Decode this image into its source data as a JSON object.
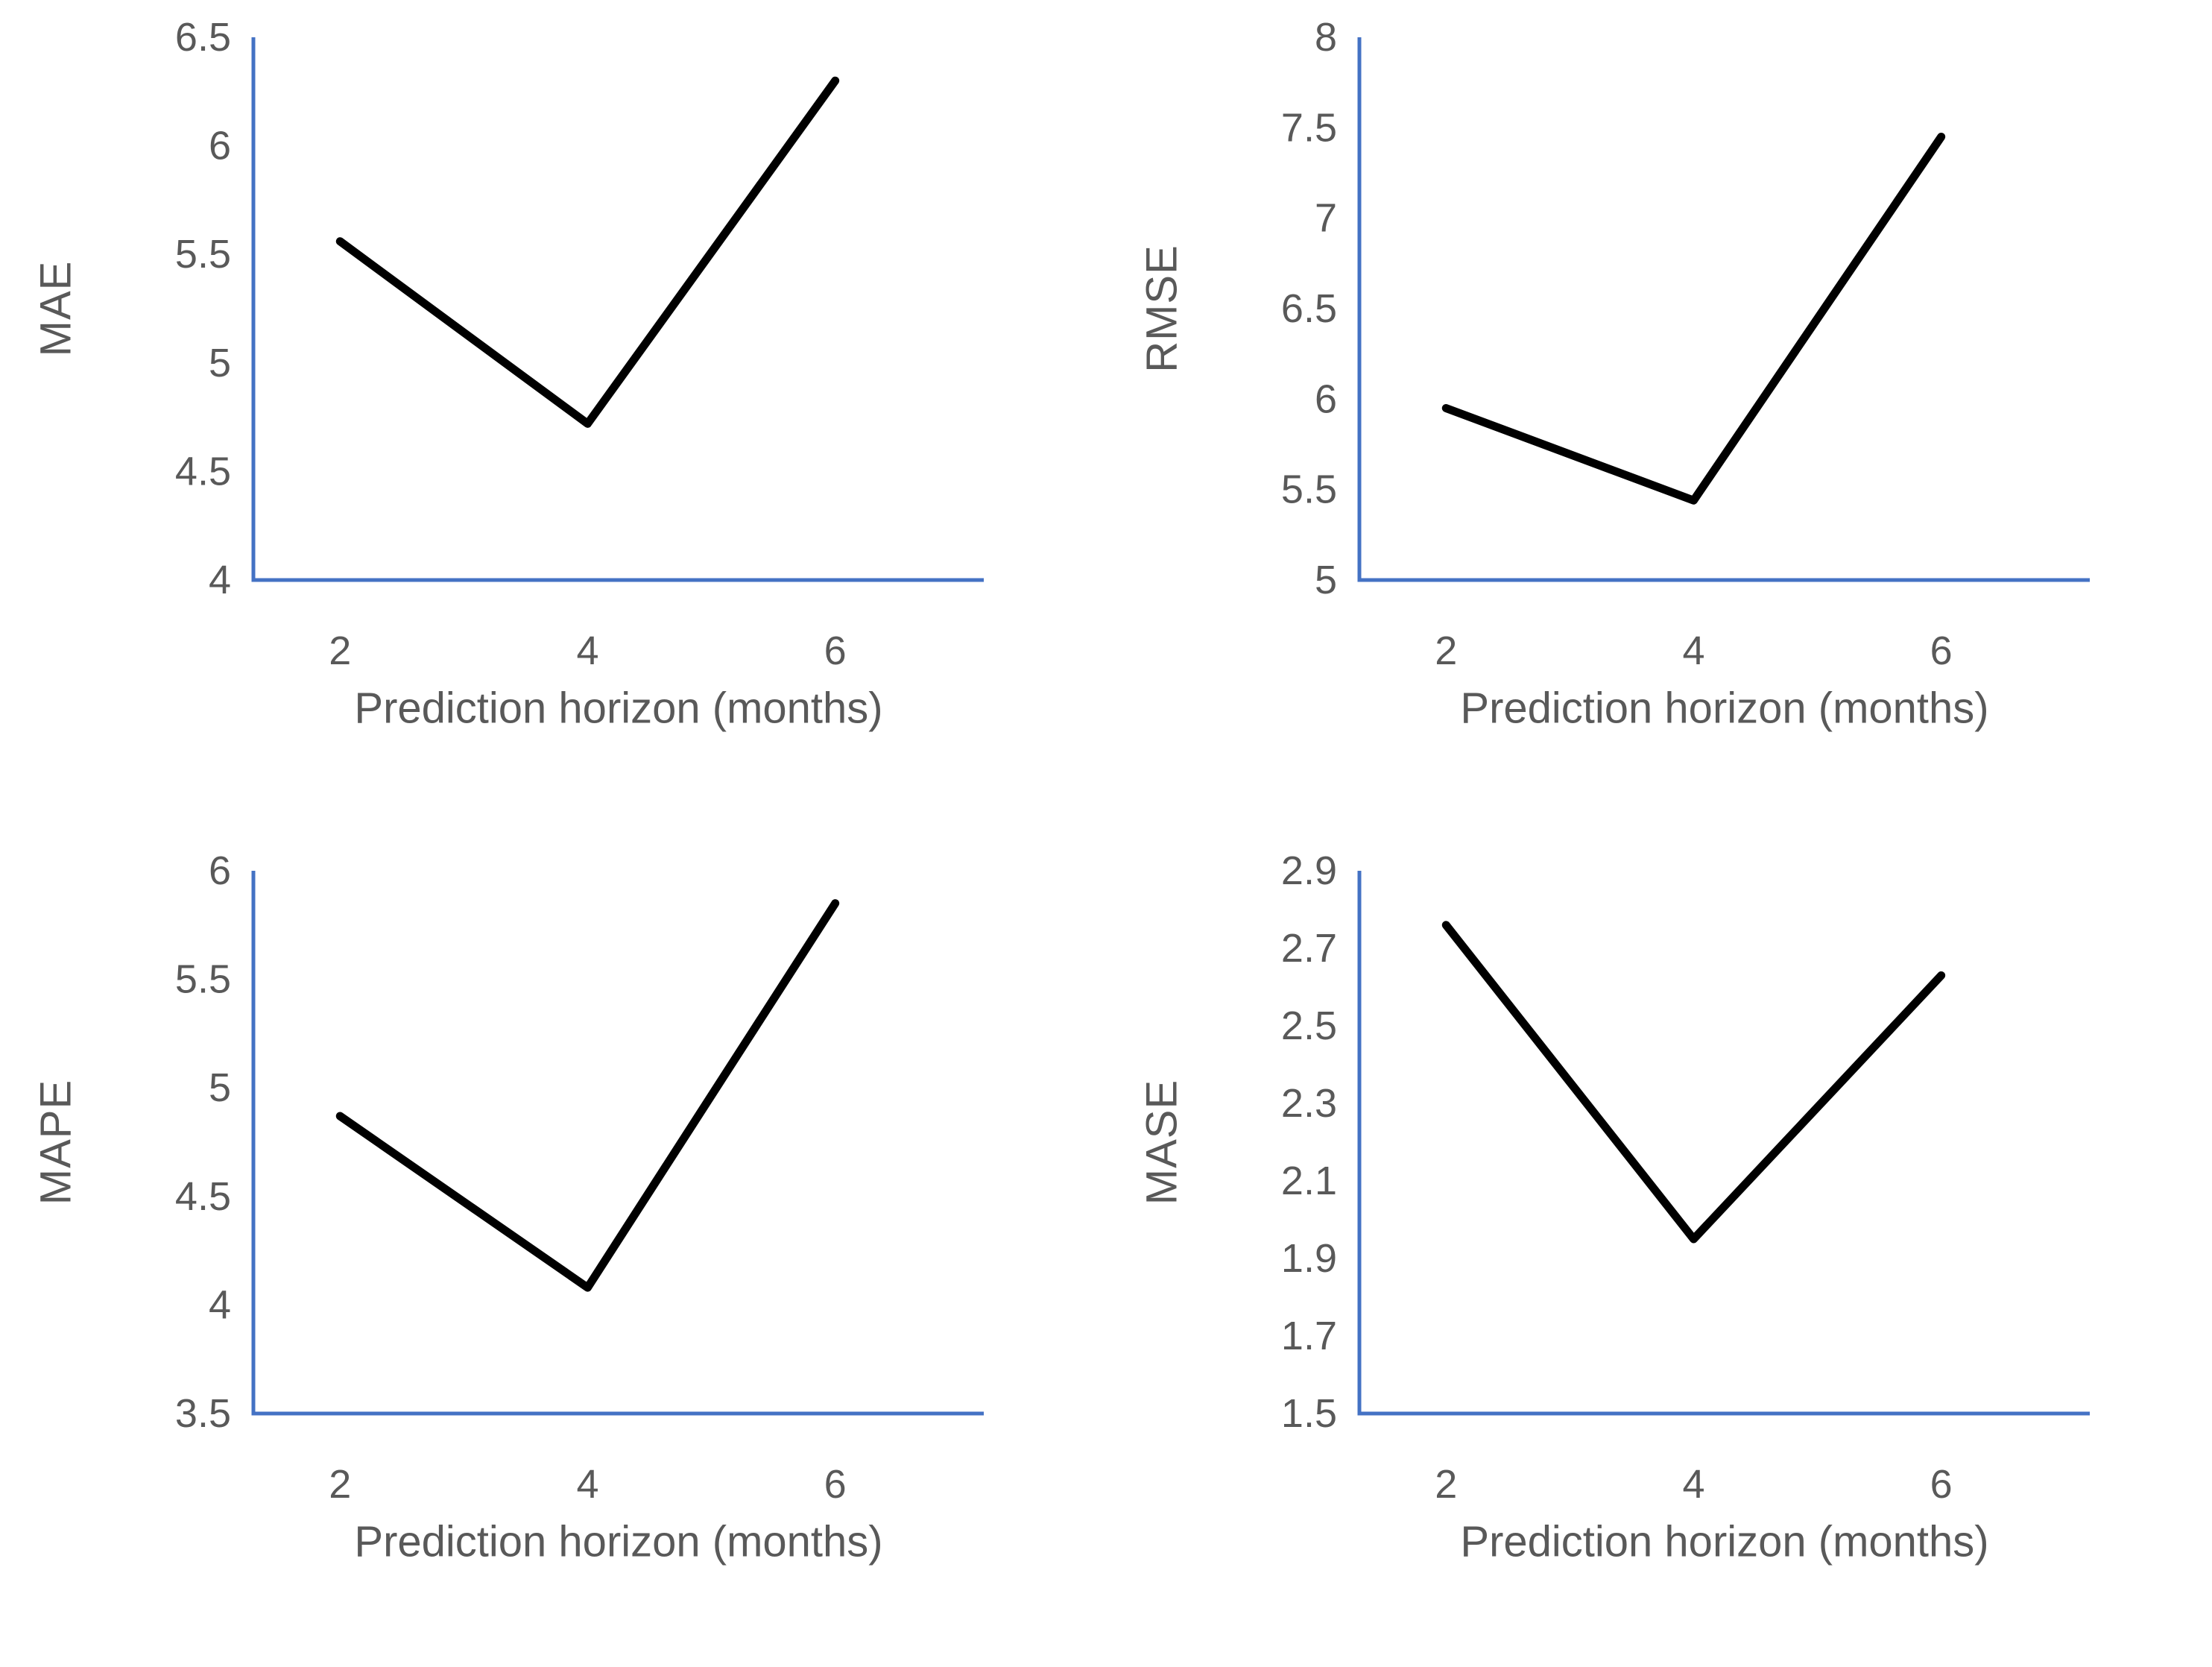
{
  "colors": {
    "axis": "#4472C4",
    "series_line": "#000000",
    "tick_label": "#595959",
    "axis_title": "#595959",
    "background": "#ffffff"
  },
  "chart_data": [
    {
      "type": "line",
      "title": "",
      "ylabel": "MAE",
      "xlabel": "Prediction horizon (months)",
      "x": [
        2,
        4,
        6
      ],
      "values": [
        5.56,
        4.72,
        6.3
      ],
      "ylim": [
        4,
        6.5
      ],
      "yticks": [
        "6.5",
        "6",
        "5.5",
        "5",
        "4.5",
        "4"
      ],
      "xticks": [
        "2",
        "4",
        "6"
      ],
      "xlim": [
        1.3,
        7.2
      ],
      "grid": false,
      "legend": "none"
    },
    {
      "type": "line",
      "title": "",
      "ylabel": "RMSE",
      "xlabel": "Prediction horizon (months)",
      "x": [
        2,
        4,
        6
      ],
      "values": [
        5.95,
        5.44,
        7.45
      ],
      "ylim": [
        5,
        8
      ],
      "yticks": [
        "8",
        "7.5",
        "7",
        "6.5",
        "6",
        "5.5",
        "5"
      ],
      "xticks": [
        "2",
        "4",
        "6"
      ],
      "xlim": [
        1.3,
        7.2
      ],
      "grid": false,
      "legend": "none"
    },
    {
      "type": "line",
      "title": "",
      "ylabel": "MAPE",
      "xlabel": "Prediction horizon (months)",
      "x": [
        2,
        4,
        6
      ],
      "values": [
        4.87,
        4.08,
        5.85
      ],
      "ylim": [
        3.5,
        6
      ],
      "yticks": [
        "6",
        "5.5",
        "5",
        "4.5",
        "4",
        "3.5"
      ],
      "xticks": [
        "2",
        "4",
        "6"
      ],
      "xlim": [
        1.3,
        7.2
      ],
      "grid": false,
      "legend": "none"
    },
    {
      "type": "line",
      "title": "",
      "ylabel": "MASE",
      "xlabel": "Prediction horizon (months)",
      "x": [
        2,
        4,
        6
      ],
      "values": [
        2.76,
        1.95,
        2.63
      ],
      "ylim": [
        1.5,
        2.9
      ],
      "yticks": [
        "2.9",
        "2.7",
        "2.5",
        "2.3",
        "2.1",
        "1.9",
        "1.7",
        "1.5"
      ],
      "xticks": [
        "2",
        "4",
        "6"
      ],
      "xlim": [
        1.3,
        7.2
      ],
      "grid": false,
      "legend": "none"
    }
  ]
}
